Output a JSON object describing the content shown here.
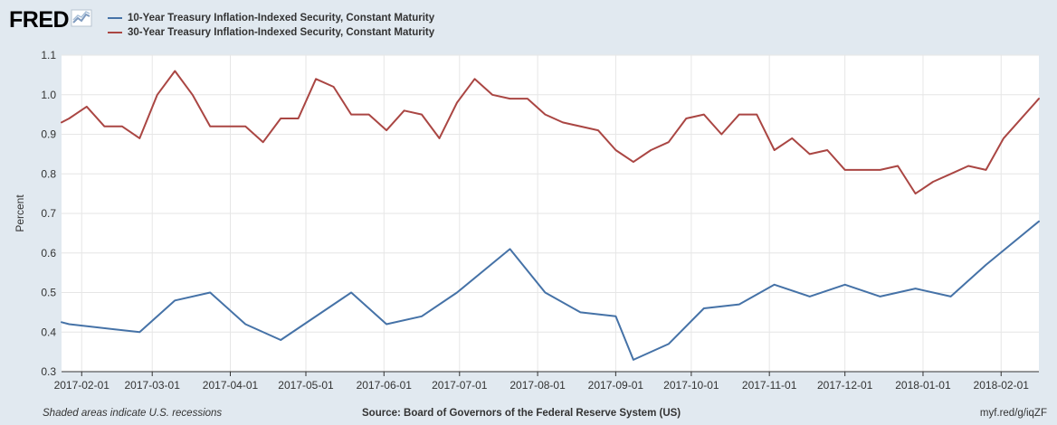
{
  "header": {
    "logo_text": "FRED",
    "logo_icon": "chart-line-icon"
  },
  "legend": [
    {
      "label": "10-Year Treasury Inflation-Indexed Security, Constant Maturity",
      "color": "#4572a7"
    },
    {
      "label": "30-Year Treasury Inflation-Indexed Security, Constant Maturity",
      "color": "#aa4643"
    }
  ],
  "footer": {
    "recession_note": "Shaded areas indicate U.S. recessions",
    "source": "Source: Board of Governors of the Federal Reserve System (US)",
    "short_url": "myf.red/g/iqZF"
  },
  "chart_data": {
    "type": "line",
    "title": "",
    "xlabel": "",
    "ylabel": "Percent",
    "ylim": [
      0.3,
      1.1
    ],
    "yticks": [
      "0.3",
      "0.4",
      "0.5",
      "0.6",
      "0.7",
      "0.8",
      "0.9",
      "1.0",
      "1.1"
    ],
    "xlim": [
      "2017-01-24",
      "2018-02-16"
    ],
    "xticks": [
      "2017-02-01",
      "2017-03-01",
      "2017-04-01",
      "2017-05-01",
      "2017-06-01",
      "2017-07-01",
      "2017-08-01",
      "2017-09-01",
      "2017-10-01",
      "2017-11-01",
      "2017-12-01",
      "2018-01-01",
      "2018-02-01"
    ],
    "grid": true,
    "series": [
      {
        "name": "10-Year Treasury Inflation-Indexed Security, Constant Maturity",
        "color": "#4572a7",
        "points": [
          [
            "2017-01-24",
            0.425
          ],
          [
            "2017-01-27",
            0.42
          ],
          [
            "2017-02-24",
            0.4
          ],
          [
            "2017-03-10",
            0.48
          ],
          [
            "2017-03-24",
            0.5
          ],
          [
            "2017-04-07",
            0.42
          ],
          [
            "2017-04-21",
            0.38
          ],
          [
            "2017-05-19",
            0.5
          ],
          [
            "2017-06-02",
            0.42
          ],
          [
            "2017-06-16",
            0.44
          ],
          [
            "2017-06-30",
            0.5
          ],
          [
            "2017-07-21",
            0.61
          ],
          [
            "2017-08-04",
            0.5
          ],
          [
            "2017-08-18",
            0.45
          ],
          [
            "2017-09-01",
            0.44
          ],
          [
            "2017-09-08",
            0.33
          ],
          [
            "2017-09-22",
            0.37
          ],
          [
            "2017-10-06",
            0.46
          ],
          [
            "2017-10-20",
            0.47
          ],
          [
            "2017-11-03",
            0.52
          ],
          [
            "2017-11-17",
            0.49
          ],
          [
            "2017-12-01",
            0.52
          ],
          [
            "2017-12-15",
            0.49
          ],
          [
            "2017-12-29",
            0.51
          ],
          [
            "2018-01-12",
            0.49
          ],
          [
            "2018-01-26",
            0.57
          ],
          [
            "2018-02-16",
            0.68
          ]
        ]
      },
      {
        "name": "30-Year Treasury Inflation-Indexed Security, Constant Maturity",
        "color": "#aa4643",
        "points": [
          [
            "2017-01-24",
            0.93
          ],
          [
            "2017-01-27",
            0.94
          ],
          [
            "2017-02-03",
            0.97
          ],
          [
            "2017-02-10",
            0.92
          ],
          [
            "2017-02-17",
            0.92
          ],
          [
            "2017-02-24",
            0.89
          ],
          [
            "2017-03-03",
            1.0
          ],
          [
            "2017-03-10",
            1.06
          ],
          [
            "2017-03-17",
            1.0
          ],
          [
            "2017-03-24",
            0.92
          ],
          [
            "2017-03-31",
            0.92
          ],
          [
            "2017-04-07",
            0.92
          ],
          [
            "2017-04-14",
            0.88
          ],
          [
            "2017-04-21",
            0.94
          ],
          [
            "2017-04-28",
            0.94
          ],
          [
            "2017-05-05",
            1.04
          ],
          [
            "2017-05-12",
            1.02
          ],
          [
            "2017-05-19",
            0.95
          ],
          [
            "2017-05-26",
            0.95
          ],
          [
            "2017-06-02",
            0.91
          ],
          [
            "2017-06-09",
            0.96
          ],
          [
            "2017-06-16",
            0.95
          ],
          [
            "2017-06-23",
            0.89
          ],
          [
            "2017-06-30",
            0.98
          ],
          [
            "2017-07-07",
            1.04
          ],
          [
            "2017-07-14",
            1.0
          ],
          [
            "2017-07-21",
            0.99
          ],
          [
            "2017-07-28",
            0.99
          ],
          [
            "2017-08-04",
            0.95
          ],
          [
            "2017-08-11",
            0.93
          ],
          [
            "2017-08-25",
            0.91
          ],
          [
            "2017-09-01",
            0.86
          ],
          [
            "2017-09-08",
            0.83
          ],
          [
            "2017-09-15",
            0.86
          ],
          [
            "2017-09-22",
            0.88
          ],
          [
            "2017-09-29",
            0.94
          ],
          [
            "2017-10-06",
            0.95
          ],
          [
            "2017-10-13",
            0.9
          ],
          [
            "2017-10-20",
            0.95
          ],
          [
            "2017-10-27",
            0.95
          ],
          [
            "2017-11-03",
            0.86
          ],
          [
            "2017-11-10",
            0.89
          ],
          [
            "2017-11-17",
            0.85
          ],
          [
            "2017-11-24",
            0.86
          ],
          [
            "2017-12-01",
            0.81
          ],
          [
            "2017-12-08",
            0.81
          ],
          [
            "2017-12-15",
            0.81
          ],
          [
            "2017-12-22",
            0.82
          ],
          [
            "2017-12-29",
            0.75
          ],
          [
            "2018-01-05",
            0.78
          ],
          [
            "2018-01-12",
            0.8
          ],
          [
            "2018-01-19",
            0.82
          ],
          [
            "2018-01-26",
            0.81
          ],
          [
            "2018-02-02",
            0.89
          ],
          [
            "2018-02-16",
            0.99
          ]
        ]
      }
    ]
  }
}
